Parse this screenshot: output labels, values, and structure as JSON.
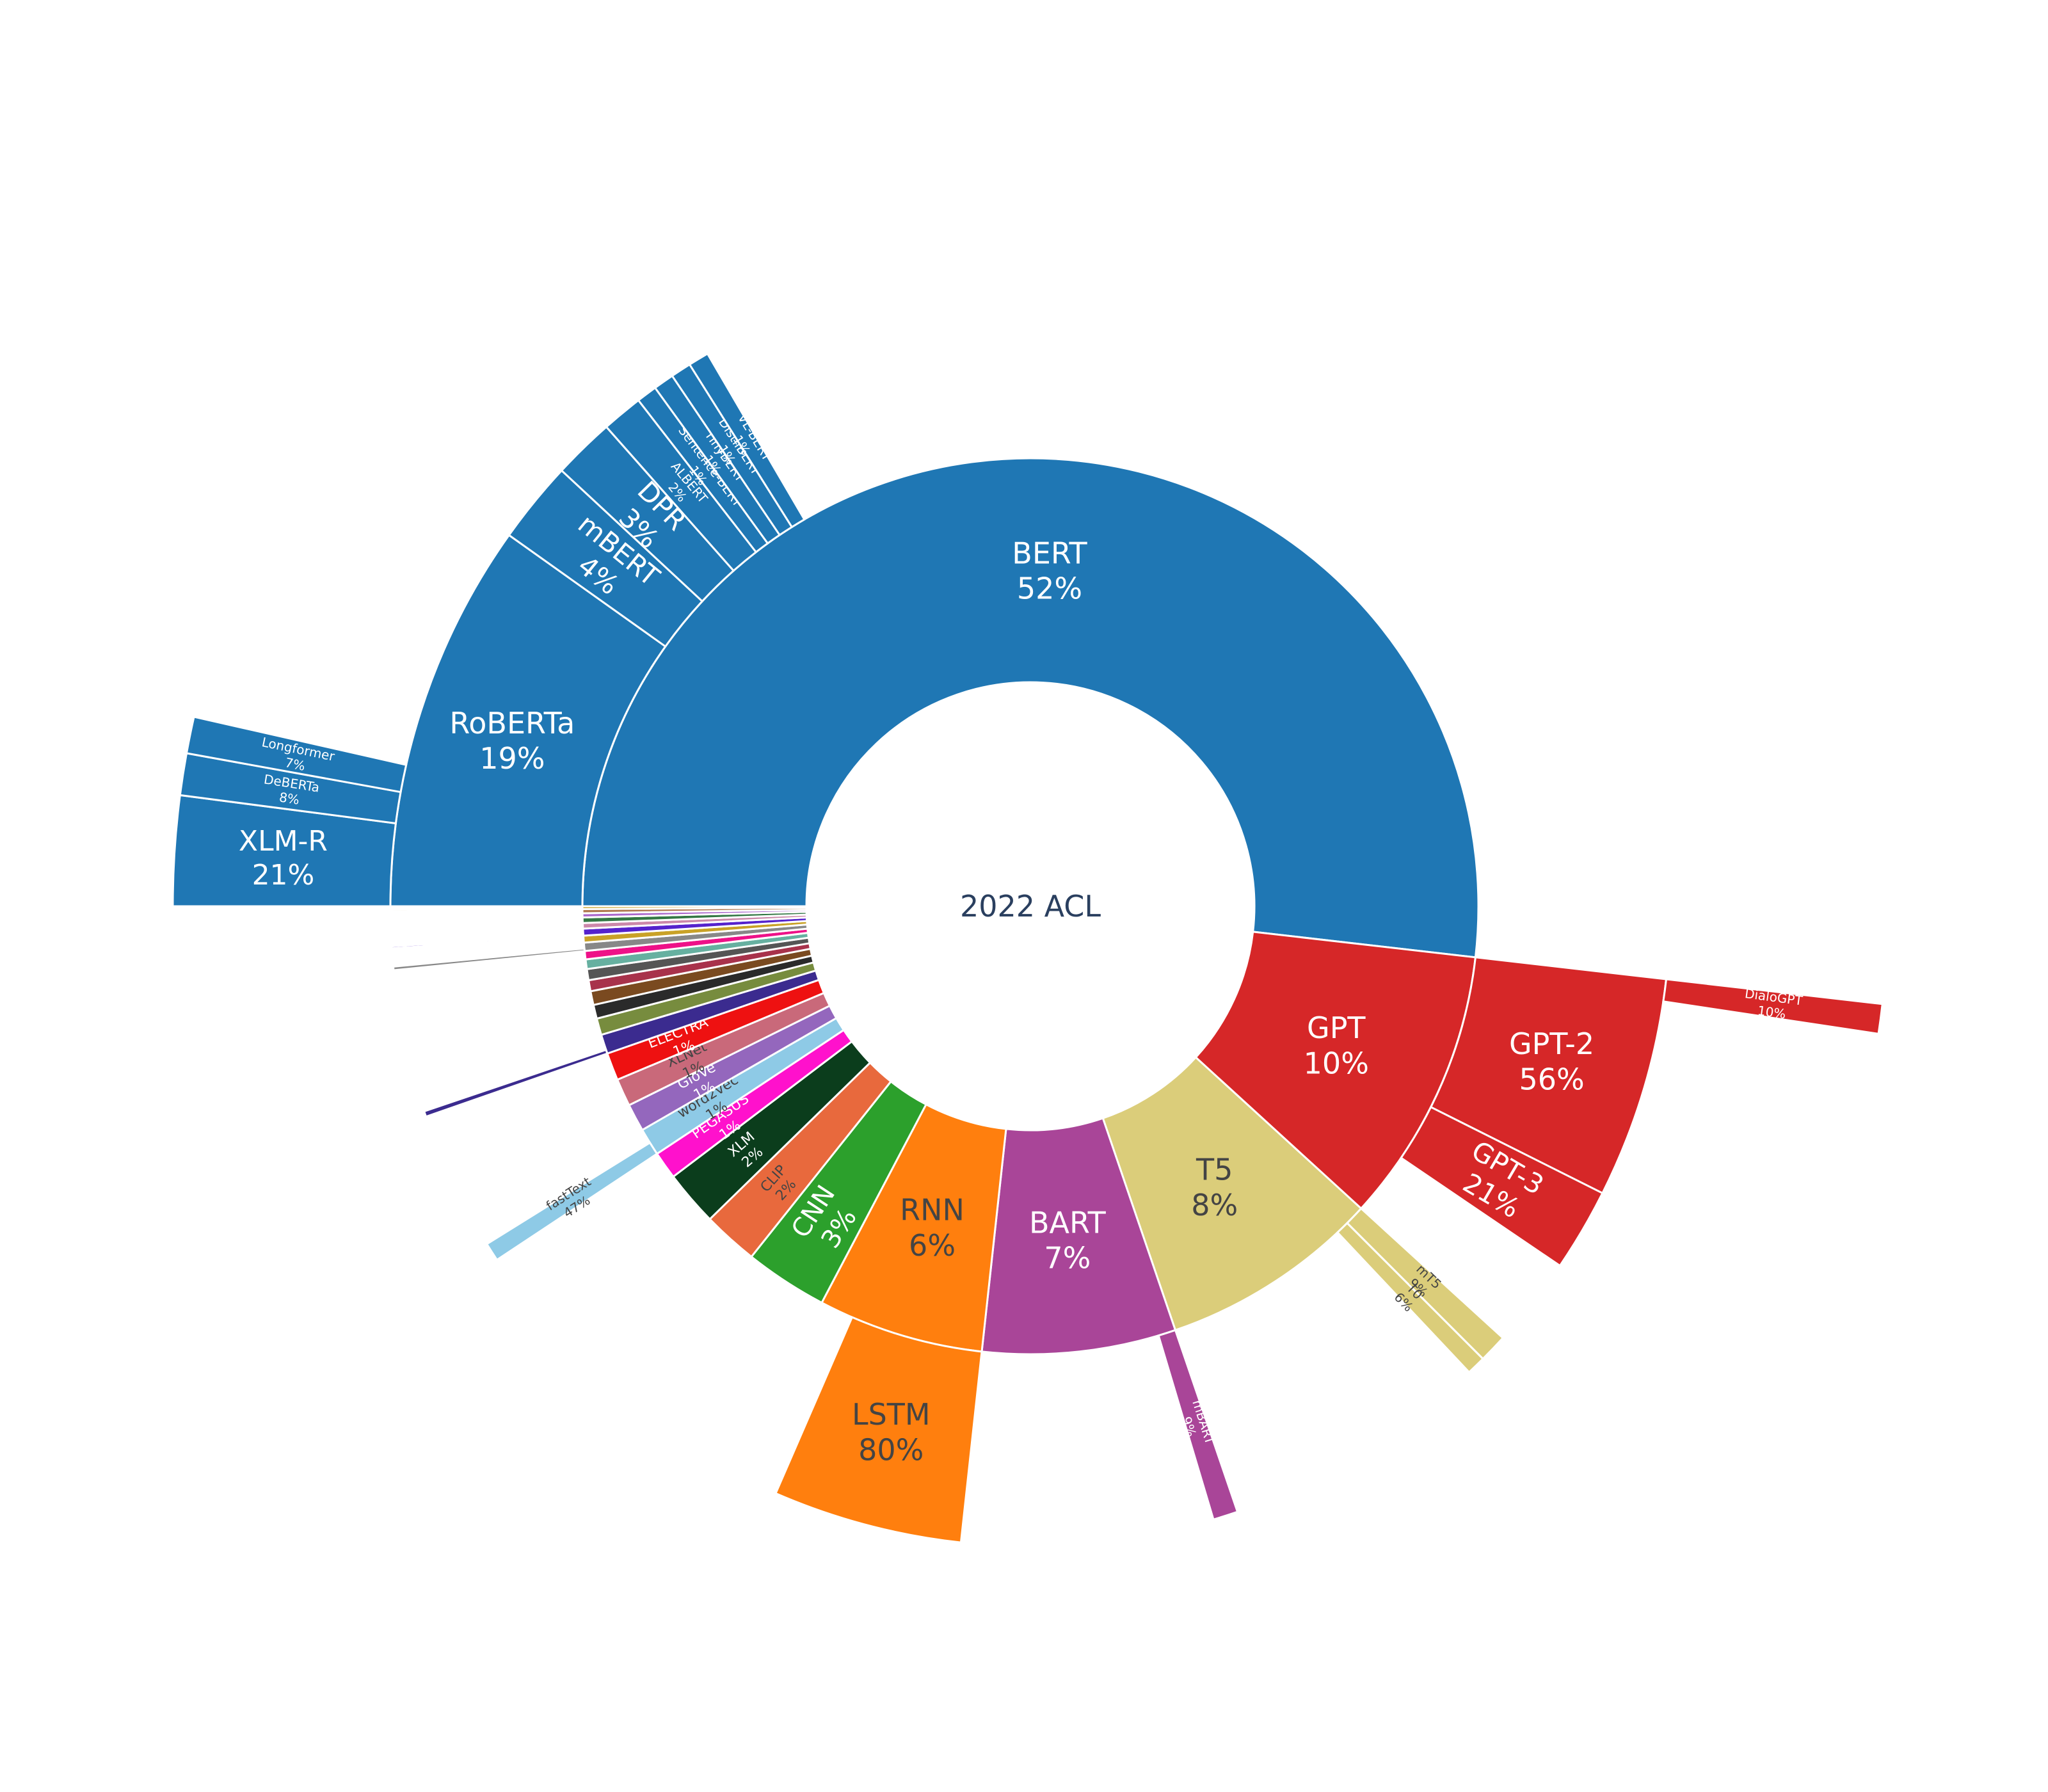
{
  "chart_data": {
    "type": "sunburst",
    "center_label": "2022 ACL",
    "note": "Sunburst: inner ring = model family share of total; outer ring = sub-model share of its parent family (percent). Bar length in outer ring encodes share.",
    "families": [
      {
        "name": "BERT",
        "percent": 52,
        "color": "#1f77b4",
        "text_color": "#ffffff",
        "children": [
          {
            "name": "RoBERTa",
            "percent": 19,
            "children": [
              {
                "name": "XLM-R",
                "percent": 21
              },
              {
                "name": "DeBERTa",
                "percent": 8
              },
              {
                "name": "Longformer",
                "percent": 7
              }
            ]
          },
          {
            "name": "mBERT",
            "percent": 4
          },
          {
            "name": "DPR",
            "percent": 3
          },
          {
            "name": "ALBERT",
            "percent": 2
          },
          {
            "name": "Sentence-BERT",
            "percent": 1
          },
          {
            "name": "TinyBERT",
            "percent": 1
          },
          {
            "name": "DistilBERT",
            "percent": 1
          },
          {
            "name": "VL-BERT",
            "percent": 1
          }
        ]
      },
      {
        "name": "GPT",
        "percent": 10,
        "color": "#d62728",
        "text_color": "#ffffff",
        "children": [
          {
            "name": "GPT-2",
            "percent": 56,
            "children": [
              {
                "name": "DialoGPT",
                "percent": 10
              }
            ]
          },
          {
            "name": "GPT-3",
            "percent": 21
          }
        ]
      },
      {
        "name": "T5",
        "percent": 8,
        "color": "#dbcd7a",
        "text_color": "#444444",
        "children": [
          {
            "name": "mT5",
            "percent": 9
          },
          {
            "name": "T0",
            "percent": 6
          }
        ]
      },
      {
        "name": "BART",
        "percent": 7,
        "color": "#a94598",
        "text_color": "#ffffff",
        "children": [
          {
            "name": "mBART",
            "percent": 9
          }
        ]
      },
      {
        "name": "RNN",
        "percent": 6,
        "color": "#ff7f0e",
        "text_color": "#444444",
        "children": [
          {
            "name": "LSTM",
            "percent": 80
          }
        ]
      },
      {
        "name": "CNN",
        "percent": 3,
        "color": "#2ca02c",
        "text_color": "#ffffff",
        "children": []
      },
      {
        "name": "CLIP",
        "percent": 2,
        "color": "#e8693d",
        "text_color": "#444444",
        "children": []
      },
      {
        "name": "XLM",
        "percent": 2,
        "color": "#0b3d1c",
        "text_color": "#ffffff",
        "children": []
      },
      {
        "name": "PEGASUS",
        "percent": 1,
        "color": "#ff11cc",
        "text_color": "#ffffff",
        "children": []
      },
      {
        "name": "word2vec",
        "percent": 1,
        "color": "#8ecae6",
        "text_color": "#444444",
        "children": [
          {
            "name": "fastText",
            "percent": 47
          }
        ]
      },
      {
        "name": "GloVe",
        "percent": 1,
        "color": "#9467bd",
        "text_color": "#ffffff",
        "children": []
      },
      {
        "name": "XLNet",
        "percent": 1,
        "color": "#c9697a",
        "text_color": "#444444",
        "children": []
      },
      {
        "name": "ELECTRA",
        "percent": 1,
        "color": "#ee1111",
        "text_color": "#ffffff",
        "children": []
      },
      {
        "name": "",
        "percent": 0.7,
        "color": "#3b2b8f",
        "text_color": "#ffffff",
        "children": [
          {
            "name": "",
            "percent": 20
          }
        ]
      },
      {
        "name": "",
        "percent": 0.6,
        "color": "#778c3e",
        "text_color": "#ffffff",
        "children": []
      },
      {
        "name": "",
        "percent": 0.5,
        "color": "#2a2a2a",
        "text_color": "#ffffff",
        "children": []
      },
      {
        "name": "",
        "percent": 0.5,
        "color": "#7a4a20",
        "text_color": "#ffffff",
        "children": []
      },
      {
        "name": "",
        "percent": 0.4,
        "color": "#a8324b",
        "text_color": "#ffffff",
        "children": []
      },
      {
        "name": "",
        "percent": 0.4,
        "color": "#555555",
        "text_color": "#ffffff",
        "children": []
      },
      {
        "name": "",
        "percent": 0.35,
        "color": "#66b0a0",
        "text_color": "#ffffff",
        "children": []
      },
      {
        "name": "",
        "percent": 0.3,
        "color": "#ee1188",
        "text_color": "#ffffff",
        "children": []
      },
      {
        "name": "",
        "percent": 0.3,
        "color": "#888888",
        "text_color": "#ffffff",
        "children": [
          {
            "name": "",
            "percent": 30
          }
        ]
      },
      {
        "name": "",
        "percent": 0.25,
        "color": "#c9a227",
        "text_color": "#ffffff",
        "children": []
      },
      {
        "name": "",
        "percent": 0.25,
        "color": "#5522cc",
        "text_color": "#ffffff",
        "children": [
          {
            "name": "",
            "percent": 20
          }
        ]
      },
      {
        "name": "",
        "percent": 0.2,
        "color": "#cc88aa",
        "text_color": "#ffffff",
        "children": []
      },
      {
        "name": "",
        "percent": 0.2,
        "color": "#337744",
        "text_color": "#ffffff",
        "children": []
      },
      {
        "name": "",
        "percent": 0.15,
        "color": "#aa66cc",
        "text_color": "#ffffff",
        "children": []
      },
      {
        "name": "",
        "percent": 0.15,
        "color": "#b07850",
        "text_color": "#ffffff",
        "children": []
      },
      {
        "name": "",
        "percent": 0.1,
        "color": "#c9a227",
        "text_color": "#ffffff",
        "children": [
          {
            "name": "",
            "percent": 20
          }
        ]
      }
    ]
  }
}
